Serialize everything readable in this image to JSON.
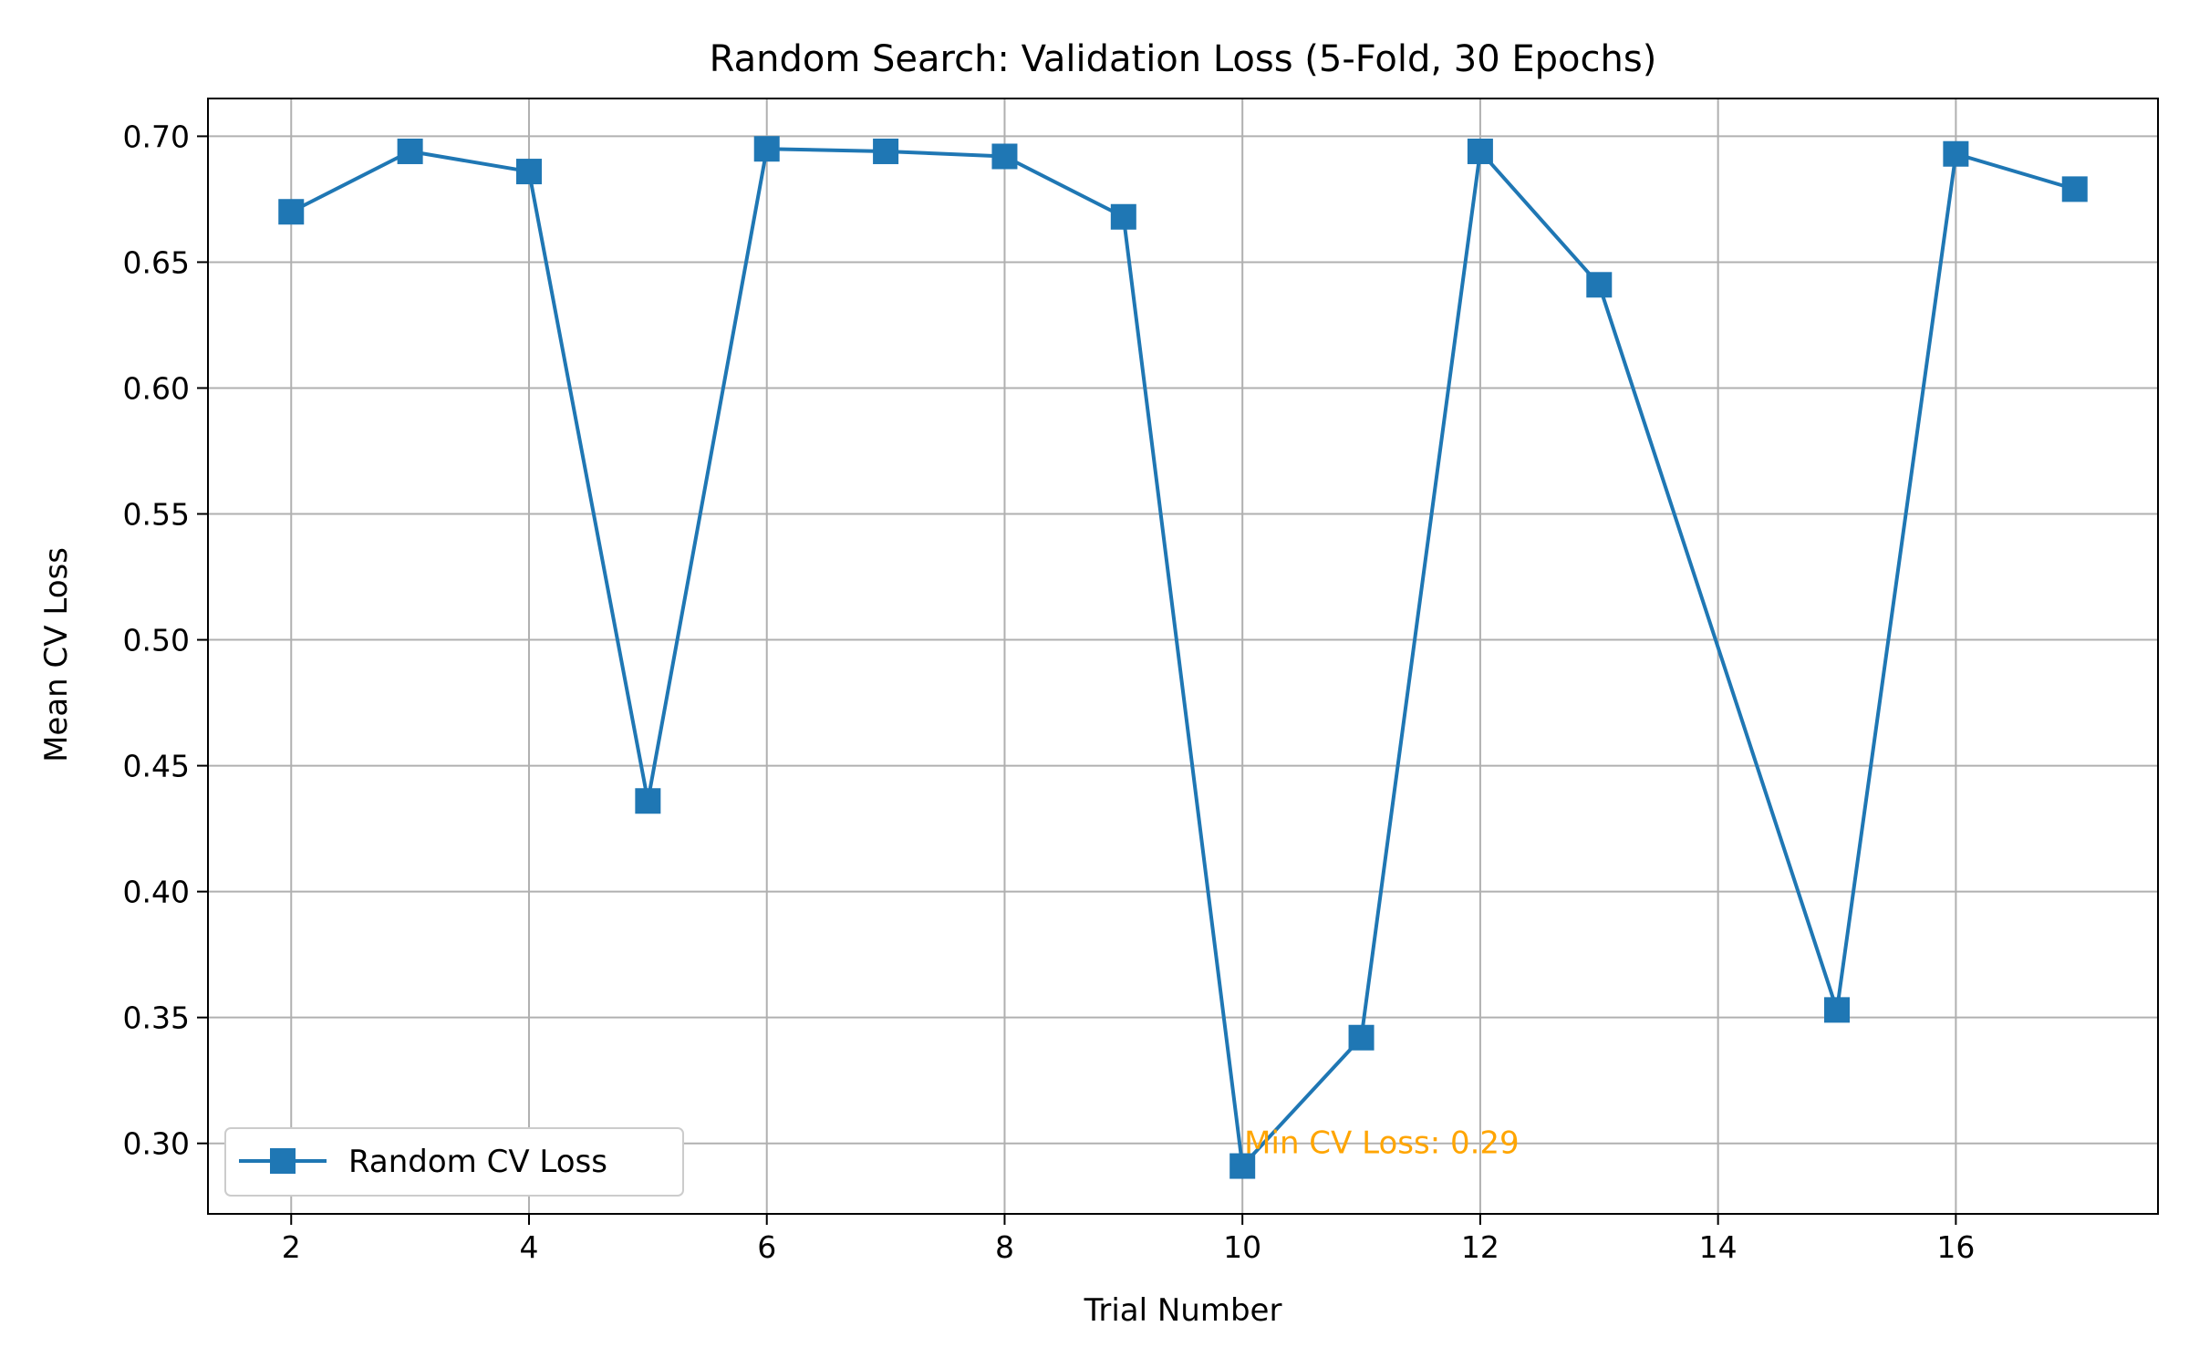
{
  "chart_data": {
    "type": "line",
    "title": "Random Search: Validation Loss (5-Fold, 30 Epochs)",
    "xlabel": "Trial Number",
    "ylabel": "Mean CV Loss",
    "xlim": [
      1.3,
      17.7
    ],
    "ylim": [
      0.272,
      0.715
    ],
    "xticks": [
      2,
      4,
      6,
      8,
      10,
      12,
      14,
      16
    ],
    "yticks": [
      0.3,
      0.35,
      0.4,
      0.45,
      0.5,
      0.55,
      0.6,
      0.65,
      0.7
    ],
    "xtick_labels": [
      "2",
      "4",
      "6",
      "8",
      "10",
      "12",
      "14",
      "16"
    ],
    "ytick_labels": [
      "0.30",
      "0.35",
      "0.40",
      "0.45",
      "0.50",
      "0.55",
      "0.60",
      "0.65",
      "0.70"
    ],
    "grid": true,
    "legend_position": "lower-left",
    "series": [
      {
        "name": "Random CV Loss",
        "color": "#1f77b4",
        "marker": "square",
        "x": [
          2,
          3,
          4,
          5,
          6,
          7,
          8,
          9,
          10,
          11,
          12,
          13,
          15,
          16,
          17
        ],
        "y": [
          0.67,
          0.694,
          0.686,
          0.436,
          0.695,
          0.694,
          0.692,
          0.668,
          0.291,
          0.342,
          0.694,
          0.641,
          0.353,
          0.693,
          0.679
        ]
      }
    ],
    "annotation": {
      "text": "Min CV Loss: 0.29",
      "x": 10,
      "y": 0.291,
      "color": "#ffa500"
    }
  }
}
